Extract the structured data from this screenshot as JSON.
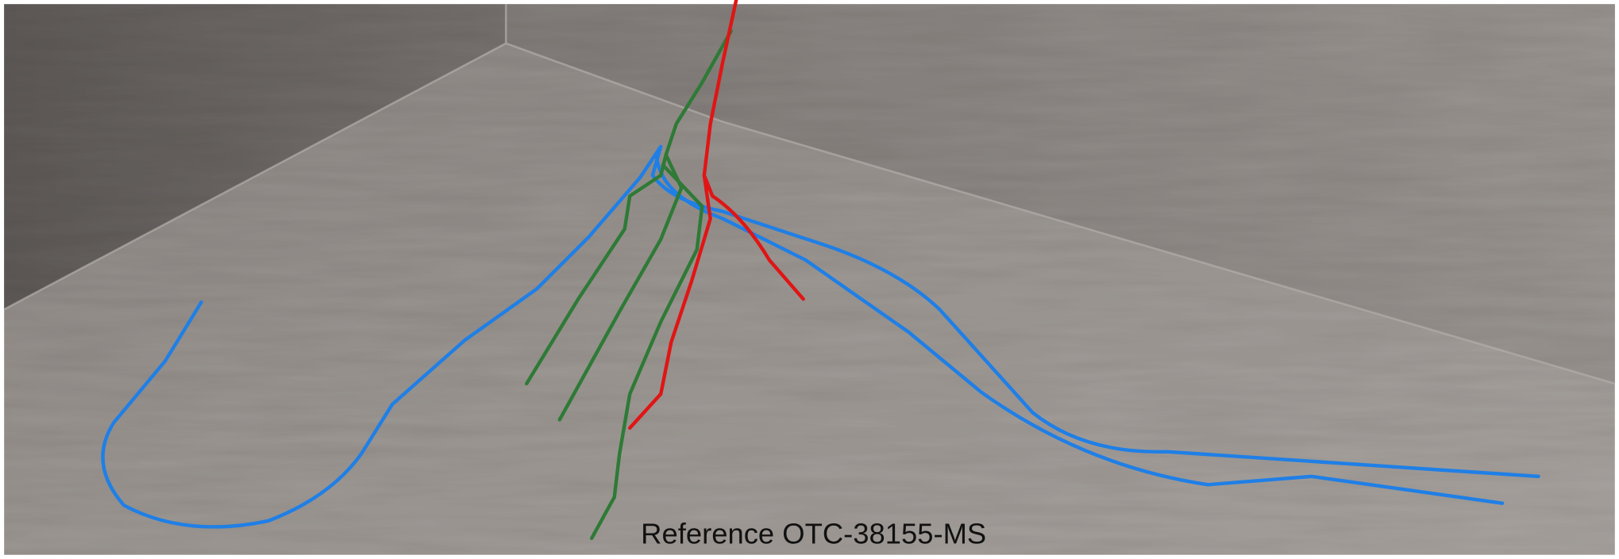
{
  "caption": "Reference OTC-38155-MS"
}
